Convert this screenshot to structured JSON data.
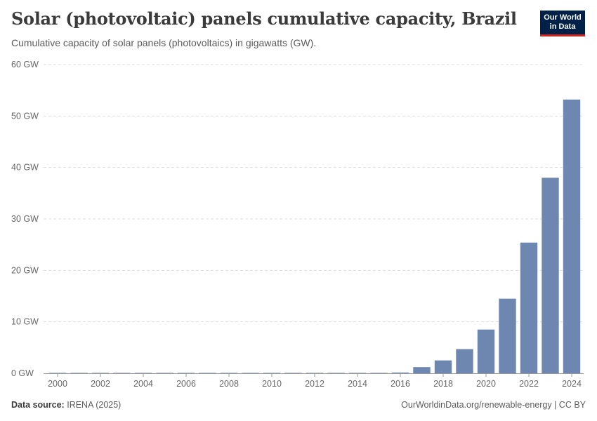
{
  "header": {
    "title": "Solar (photovoltaic) panels cumulative capacity, Brazil",
    "subtitle": "Cumulative capacity of solar panels (photovoltaics) in gigawatts (GW)."
  },
  "logo": {
    "line1": "Our World",
    "line2": "in Data",
    "bg_color": "#002147",
    "accent_color": "#ce261e"
  },
  "footer": {
    "source_label": "Data source:",
    "source_value": "IRENA (2025)",
    "link": "OurWorldinData.org/renewable-energy | CC BY"
  },
  "chart_data": {
    "type": "bar",
    "title": "Solar (photovoltaic) panels cumulative capacity, Brazil",
    "xlabel": "",
    "ylabel": "",
    "y_unit_suffix": " GW",
    "ylim": [
      0,
      60
    ],
    "yticks": [
      0,
      10,
      20,
      30,
      40,
      50,
      60
    ],
    "xticks": [
      2000,
      2002,
      2004,
      2006,
      2008,
      2010,
      2012,
      2014,
      2016,
      2018,
      2020,
      2022,
      2024
    ],
    "grid": true,
    "bar_color": "#6d87b1",
    "categories": [
      2000,
      2001,
      2002,
      2003,
      2004,
      2005,
      2006,
      2007,
      2008,
      2009,
      2010,
      2011,
      2012,
      2013,
      2014,
      2015,
      2016,
      2017,
      2018,
      2019,
      2020,
      2021,
      2022,
      2023,
      2024
    ],
    "values": [
      0.002,
      0.003,
      0.004,
      0.005,
      0.006,
      0.007,
      0.008,
      0.009,
      0.01,
      0.011,
      0.012,
      0.013,
      0.015,
      0.02,
      0.03,
      0.04,
      0.15,
      1.2,
      2.5,
      4.7,
      8.5,
      14.5,
      25.4,
      38.0,
      53.2
    ]
  }
}
